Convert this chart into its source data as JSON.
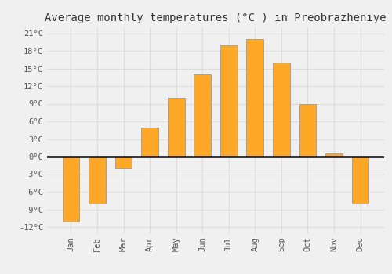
{
  "months": [
    "Jan",
    "Feb",
    "Mar",
    "Apr",
    "May",
    "Jun",
    "Jul",
    "Aug",
    "Sep",
    "Oct",
    "Nov",
    "Dec"
  ],
  "temperatures": [
    -11,
    -8,
    -2,
    5,
    10,
    14,
    19,
    20,
    16,
    9,
    0.5,
    -8
  ],
  "bar_color": "#FFA726",
  "bar_edge_color": "#999999",
  "title": "Average monthly temperatures (°C ) in Preobrazheniye",
  "ylim": [
    -13,
    22
  ],
  "yticks": [
    -12,
    -9,
    -6,
    -3,
    0,
    3,
    6,
    9,
    12,
    15,
    18,
    21
  ],
  "ytick_labels": [
    "-12°C",
    "-9°C",
    "-6°C",
    "-3°C",
    "0°C",
    "3°C",
    "6°C",
    "9°C",
    "12°C",
    "15°C",
    "18°C",
    "21°C"
  ],
  "background_color": "#f0f0f0",
  "grid_color": "#dddddd",
  "title_fontsize": 10,
  "zero_line_color": "#000000",
  "bar_width": 0.65
}
